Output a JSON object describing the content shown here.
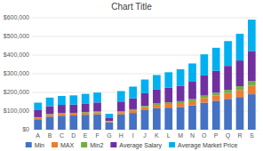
{
  "chart_data": {
    "type": "bar",
    "stacked": true,
    "title": "Chart Title",
    "categories": [
      "A",
      "B",
      "C",
      "D",
      "E",
      "F",
      "G",
      "H",
      "I",
      "J",
      "K",
      "L",
      "M",
      "N",
      "O",
      "P",
      "Q",
      "R",
      "S"
    ],
    "series": [
      {
        "name": "Min",
        "color": "#4472C4",
        "values": [
          56000,
          70000,
          75000,
          76000,
          80000,
          82000,
          40000,
          82000,
          90000,
          105000,
          115000,
          118000,
          122000,
          130000,
          145000,
          155000,
          165000,
          175000,
          190000
        ]
      },
      {
        "name": "MAX",
        "color": "#ED7D31",
        "values": [
          8000,
          10000,
          10000,
          10000,
          11000,
          11000,
          5000,
          12000,
          14000,
          16000,
          18000,
          20000,
          21000,
          23000,
          25000,
          28000,
          32000,
          38000,
          46000
        ]
      },
      {
        "name": "Min2",
        "color": "#70AD47",
        "values": [
          3000,
          4000,
          4000,
          4000,
          4000,
          5000,
          2000,
          5000,
          6000,
          7000,
          8000,
          9000,
          10000,
          11000,
          13000,
          15000,
          17000,
          20000,
          24000
        ]
      },
      {
        "name": "Average Salary",
        "color": "#7030A0",
        "values": [
          38000,
          42000,
          44000,
          45000,
          46000,
          48000,
          18000,
          52000,
          58000,
          68000,
          74000,
          78000,
          83000,
          93000,
          108000,
          118000,
          128000,
          138000,
          162000
        ]
      },
      {
        "name": "Average Market Price",
        "color": "#00B0F0",
        "values": [
          40000,
          46000,
          48000,
          49000,
          51000,
          53000,
          20000,
          56000,
          63000,
          73000,
          78000,
          83000,
          88000,
          98000,
          113000,
          123000,
          133000,
          143000,
          168000
        ]
      }
    ],
    "ylim": [
      0,
      600000
    ],
    "yticks": [
      {
        "value": 0,
        "label": "$0"
      },
      {
        "value": 100000,
        "label": "$100,000"
      },
      {
        "value": 200000,
        "label": "$200,000"
      },
      {
        "value": 300000,
        "label": "$300,000"
      },
      {
        "value": 400000,
        "label": "$400,000"
      },
      {
        "value": 500000,
        "label": "$500,000"
      },
      {
        "value": 600000,
        "label": "$600,000"
      }
    ],
    "grid": true,
    "legend": "bottom"
  }
}
